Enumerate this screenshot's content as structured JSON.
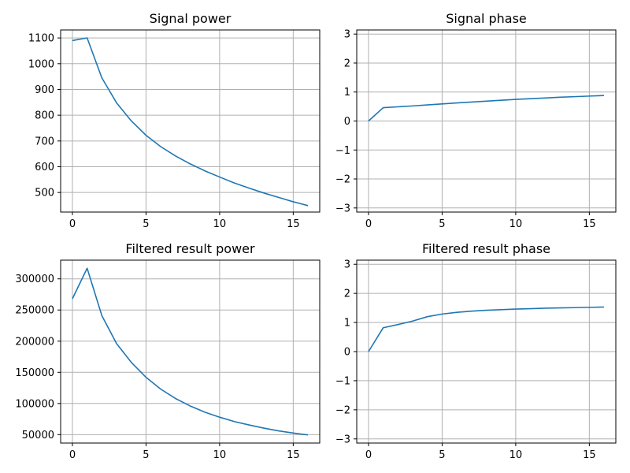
{
  "chart_data": [
    {
      "type": "line",
      "title": "Signal power",
      "xlabel": "",
      "ylabel": "",
      "xlim": [
        -0.8,
        16.8
      ],
      "ylim": [
        424,
        1131
      ],
      "xticks": [
        0,
        5,
        10,
        15
      ],
      "xtick_labels": [
        "0",
        "5",
        "10",
        "15"
      ],
      "yticks": [
        500,
        600,
        700,
        800,
        900,
        1000,
        1100
      ],
      "ytick_labels": [
        "500",
        "600",
        "700",
        "800",
        "900",
        "1000",
        "1100"
      ],
      "grid": true,
      "series": [
        {
          "color": "#1f77b4",
          "x": [
            0,
            1,
            2,
            3,
            4,
            5,
            6,
            7,
            8,
            9,
            10,
            11,
            12,
            13,
            14,
            15,
            16
          ],
          "y": [
            1090,
            1100,
            945,
            848,
            778,
            722,
            678,
            642,
            611,
            584,
            560,
            537,
            517,
            498,
            481,
            464,
            449
          ]
        }
      ]
    },
    {
      "type": "line",
      "title": "Signal phase",
      "xlabel": "",
      "ylabel": "",
      "xlim": [
        -0.8,
        16.8
      ],
      "ylim": [
        -3.1416,
        3.1416
      ],
      "xticks": [
        0,
        5,
        10,
        15
      ],
      "xtick_labels": [
        "0",
        "5",
        "10",
        "15"
      ],
      "yticks": [
        -3,
        -2,
        -1,
        0,
        1,
        2,
        3
      ],
      "ytick_labels": [
        "−3",
        "−2",
        "−1",
        "0",
        "1",
        "2",
        "3"
      ],
      "grid": true,
      "series": [
        {
          "color": "#1f77b4",
          "x": [
            0,
            1,
            2,
            3,
            4,
            5,
            6,
            7,
            8,
            9,
            10,
            11,
            12,
            13,
            14,
            15,
            16
          ],
          "y": [
            0,
            0.46,
            0.49,
            0.52,
            0.555,
            0.59,
            0.625,
            0.655,
            0.685,
            0.715,
            0.745,
            0.77,
            0.795,
            0.82,
            0.84,
            0.86,
            0.88
          ]
        }
      ]
    },
    {
      "type": "line",
      "title": "Filtered result power",
      "xlabel": "",
      "ylabel": "",
      "xlim": [
        -0.8,
        16.8
      ],
      "ylim": [
        36500,
        330000
      ],
      "xticks": [
        0,
        5,
        10,
        15
      ],
      "xtick_labels": [
        "0",
        "5",
        "10",
        "15"
      ],
      "yticks": [
        50000,
        100000,
        150000,
        200000,
        250000,
        300000
      ],
      "ytick_labels": [
        "50000",
        "100000",
        "150000",
        "200000",
        "250000",
        "300000"
      ],
      "grid": true,
      "series": [
        {
          "color": "#1f77b4",
          "x": [
            0,
            1,
            2,
            3,
            4,
            5,
            6,
            7,
            8,
            9,
            10,
            11,
            12,
            13,
            14,
            15,
            16
          ],
          "y": [
            268000,
            317000,
            241000,
            196000,
            166000,
            142000,
            123000,
            108000,
            96000,
            86000,
            78000,
            71000,
            65500,
            60500,
            56000,
            52500,
            49500
          ]
        }
      ]
    },
    {
      "type": "line",
      "title": "Filtered result phase",
      "xlabel": "",
      "ylabel": "",
      "xlim": [
        -0.8,
        16.8
      ],
      "ylim": [
        -3.1416,
        3.1416
      ],
      "xticks": [
        0,
        5,
        10,
        15
      ],
      "xtick_labels": [
        "0",
        "5",
        "10",
        "15"
      ],
      "yticks": [
        -3,
        -2,
        -1,
        0,
        1,
        2,
        3
      ],
      "ytick_labels": [
        "−3",
        "−2",
        "−1",
        "0",
        "1",
        "2",
        "3"
      ],
      "grid": true,
      "series": [
        {
          "color": "#1f77b4",
          "x": [
            0,
            1,
            2,
            3,
            4,
            5,
            6,
            7,
            8,
            9,
            10,
            11,
            12,
            13,
            14,
            15,
            16
          ],
          "y": [
            0,
            0.82,
            0.93,
            1.05,
            1.2,
            1.29,
            1.35,
            1.39,
            1.42,
            1.44,
            1.46,
            1.475,
            1.49,
            1.5,
            1.51,
            1.52,
            1.53
          ]
        }
      ]
    }
  ]
}
